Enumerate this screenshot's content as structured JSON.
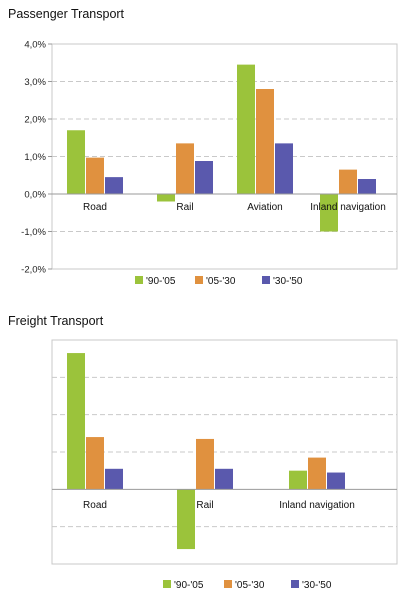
{
  "chart_data": [
    {
      "type": "bar",
      "title": "Passenger Transport",
      "categories": [
        "Road",
        "Rail",
        "Aviation",
        "Inland navigation"
      ],
      "series": [
        {
          "name": "'90-'05",
          "color": "#9bc33b",
          "values": [
            1.7,
            -0.2,
            3.45,
            -1.0
          ]
        },
        {
          "name": "'05-'30",
          "color": "#e0913f",
          "values": [
            0.97,
            1.35,
            2.8,
            0.65
          ]
        },
        {
          "name": "'30-'50",
          "color": "#5a59ad",
          "values": [
            0.45,
            0.88,
            1.35,
            0.4
          ]
        }
      ],
      "ylim": [
        -2,
        4
      ],
      "yticks": [
        -2,
        -1,
        0,
        1,
        2,
        3,
        4
      ],
      "ytick_labels": [
        "-2,0%",
        "-1,0%",
        "0,0%",
        "1,0%",
        "2,0%",
        "3,0%",
        "4,0%"
      ],
      "grid": true,
      "legend": "bottom"
    },
    {
      "type": "bar",
      "title": "Freight Transport",
      "categories": [
        "Road",
        "Rail",
        "Inland navigation"
      ],
      "series": [
        {
          "name": "'90-'05",
          "color": "#9bc33b",
          "values": [
            3.65,
            -1.6,
            0.5
          ]
        },
        {
          "name": "'05-'30",
          "color": "#e0913f",
          "values": [
            1.4,
            1.35,
            0.85
          ]
        },
        {
          "name": "'30-'50",
          "color": "#5a59ad",
          "values": [
            0.55,
            0.55,
            0.45
          ]
        }
      ],
      "ylim": [
        -2,
        4
      ],
      "yticks": [
        -2,
        -1,
        0,
        1,
        2,
        3,
        4
      ],
      "grid": true,
      "legend": "bottom"
    }
  ]
}
